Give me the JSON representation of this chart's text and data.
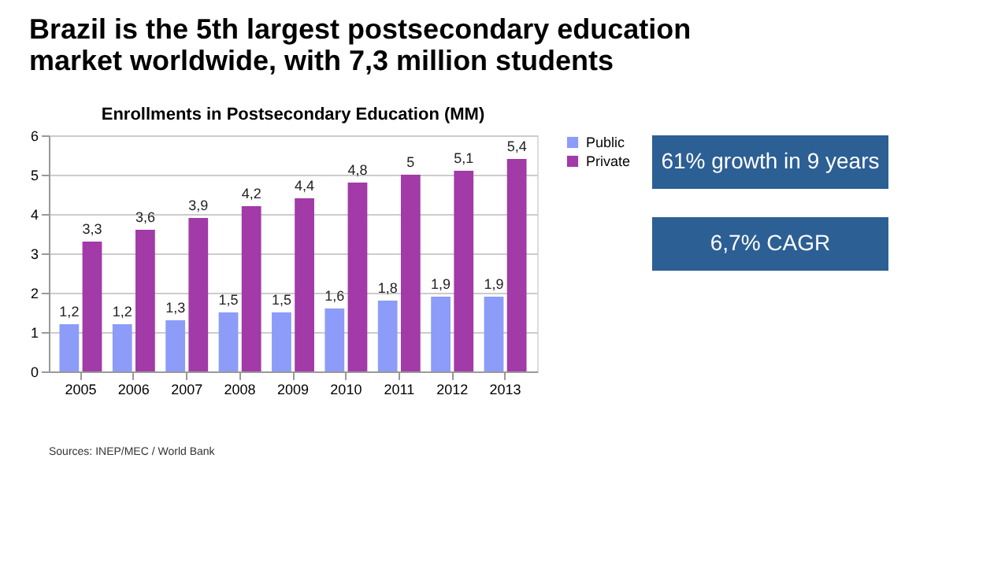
{
  "chart_data": {
    "type": "bar",
    "title": "Brazil is the 5th largest postsecondary education market worldwide, with 7,3 million students",
    "subtitle": "Enrollments in Postsecondary Education (MM)",
    "categories": [
      "2005",
      "2006",
      "2007",
      "2008",
      "2009",
      "2010",
      "2011",
      "2012",
      "2013"
    ],
    "series": [
      {
        "name": "Public",
        "color": "#8c9cf8",
        "values": [
          1.2,
          1.2,
          1.3,
          1.5,
          1.5,
          1.6,
          1.8,
          1.9,
          1.9
        ],
        "value_labels": [
          "1,2",
          "1,2",
          "1,3",
          "1,5",
          "1,5",
          "1,6",
          "1,8",
          "1,9",
          "1,9"
        ]
      },
      {
        "name": "Private",
        "color": "#a23aa8",
        "values": [
          3.3,
          3.6,
          3.9,
          4.2,
          4.4,
          4.8,
          5,
          5.1,
          5.4
        ],
        "value_labels": [
          "3,3",
          "3,6",
          "3,9",
          "4,2",
          "4,4",
          "4,8",
          "5",
          "5,1",
          "5,4"
        ]
      }
    ],
    "ylim": [
      0,
      6
    ],
    "yticks": [
      0,
      1,
      2,
      3,
      4,
      5,
      6
    ],
    "grid": "y",
    "legend": "right",
    "annotations": [
      "61% growth in 9 years",
      "6,7% CAGR",
      "Sources: INEP/MEC / World Bank"
    ]
  }
}
